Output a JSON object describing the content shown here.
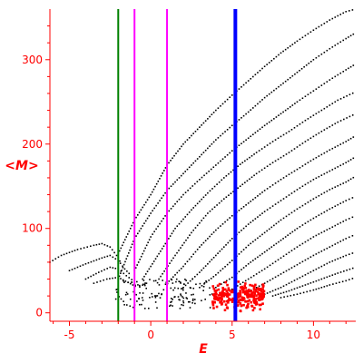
{
  "chart_data": {
    "type": "scatter",
    "title": "",
    "xlabel": "E",
    "ylabel": "<M>",
    "xlim": [
      -6.2,
      12.6
    ],
    "ylim": [
      -10,
      360
    ],
    "xticks": [
      -5,
      0,
      5,
      10
    ],
    "yticks": [
      0,
      100,
      200,
      300
    ],
    "grid": false,
    "colors": {
      "axis": "#ff0000",
      "curves": "#000000",
      "cluster": "#ff0000",
      "green_line": "#008000",
      "magenta_line": "#ff00ff",
      "blue_line": "#0000ff"
    },
    "vertical_lines": [
      {
        "x": -2.0,
        "color": "#008000"
      },
      {
        "x": -1.0,
        "color": "#ff00ff"
      },
      {
        "x": 1.0,
        "color": "#ff00ff"
      },
      {
        "x": 5.2,
        "color": "#0000ff",
        "thick": true
      }
    ],
    "curves": [
      {
        "points": [
          [
            -2.0,
            70
          ],
          [
            -1.5,
            90
          ],
          [
            -1.0,
            110
          ],
          [
            0,
            140
          ],
          [
            1,
            175
          ],
          [
            2,
            200
          ],
          [
            3,
            220
          ],
          [
            4,
            240
          ],
          [
            5,
            258
          ],
          [
            6,
            275
          ],
          [
            7,
            292
          ],
          [
            8,
            308
          ],
          [
            9,
            322
          ],
          [
            10,
            335
          ],
          [
            11,
            347
          ],
          [
            12,
            357
          ],
          [
            12.6,
            360
          ]
        ]
      },
      {
        "points": [
          [
            -2.0,
            40
          ],
          [
            -1.0,
            88
          ],
          [
            0,
            118
          ],
          [
            1,
            145
          ],
          [
            2,
            165
          ],
          [
            3,
            185
          ],
          [
            4,
            205
          ],
          [
            5,
            222
          ],
          [
            6,
            238
          ],
          [
            7,
            255
          ],
          [
            8,
            270
          ],
          [
            9,
            285
          ],
          [
            10,
            300
          ],
          [
            11,
            313
          ],
          [
            12,
            325
          ],
          [
            12.6,
            332
          ]
        ]
      },
      {
        "points": [
          [
            -1.0,
            50
          ],
          [
            0,
            90
          ],
          [
            1,
            118
          ],
          [
            2,
            140
          ],
          [
            3,
            158
          ],
          [
            4,
            175
          ],
          [
            5,
            192
          ],
          [
            6,
            207
          ],
          [
            7,
            222
          ],
          [
            8,
            236
          ],
          [
            9,
            250
          ],
          [
            10,
            263
          ],
          [
            11,
            276
          ],
          [
            12,
            288
          ],
          [
            12.6,
            295
          ]
        ]
      },
      {
        "points": [
          [
            -0.5,
            40
          ],
          [
            0.5,
            70
          ],
          [
            1.5,
            100
          ],
          [
            2.5,
            122
          ],
          [
            3.5,
            142
          ],
          [
            4.5,
            160
          ],
          [
            5.5,
            176
          ],
          [
            6.5,
            190
          ],
          [
            7.5,
            203
          ],
          [
            8.5,
            215
          ],
          [
            9.5,
            228
          ],
          [
            10.5,
            240
          ],
          [
            11.5,
            252
          ],
          [
            12.6,
            262
          ]
        ]
      },
      {
        "points": [
          [
            0.5,
            40
          ],
          [
            1.5,
            68
          ],
          [
            2.5,
            95
          ],
          [
            3.5,
            118
          ],
          [
            4.5,
            135
          ],
          [
            5.5,
            150
          ],
          [
            6.5,
            165
          ],
          [
            7.5,
            178
          ],
          [
            8.5,
            190
          ],
          [
            9.5,
            203
          ],
          [
            10.5,
            215
          ],
          [
            11.5,
            226
          ],
          [
            12.6,
            236
          ]
        ]
      },
      {
        "points": [
          [
            1.0,
            35
          ],
          [
            2.0,
            55
          ],
          [
            3.0,
            78
          ],
          [
            4.0,
            98
          ],
          [
            5.0,
            115
          ],
          [
            6.0,
            130
          ],
          [
            7.0,
            145
          ],
          [
            8.0,
            158
          ],
          [
            9.0,
            170
          ],
          [
            10.0,
            182
          ],
          [
            11.0,
            193
          ],
          [
            12.0,
            203
          ],
          [
            12.6,
            210
          ]
        ]
      },
      {
        "points": [
          [
            2.0,
            30
          ],
          [
            3.0,
            48
          ],
          [
            4.0,
            68
          ],
          [
            5.0,
            88
          ],
          [
            6.0,
            105
          ],
          [
            7.0,
            120
          ],
          [
            8.0,
            133
          ],
          [
            9.0,
            146
          ],
          [
            10.0,
            158
          ],
          [
            11.0,
            168
          ],
          [
            12.0,
            178
          ],
          [
            12.6,
            185
          ]
        ]
      },
      {
        "points": [
          [
            3.0,
            30
          ],
          [
            4.0,
            45
          ],
          [
            5.0,
            62
          ],
          [
            6.0,
            80
          ],
          [
            7.0,
            95
          ],
          [
            8.0,
            110
          ],
          [
            9.0,
            123
          ],
          [
            10.0,
            135
          ],
          [
            11.0,
            146
          ],
          [
            12.0,
            155
          ],
          [
            12.6,
            162
          ]
        ]
      },
      {
        "points": [
          [
            4.0,
            30
          ],
          [
            5.0,
            42
          ],
          [
            6.0,
            58
          ],
          [
            7.0,
            72
          ],
          [
            8.0,
            86
          ],
          [
            9.0,
            100
          ],
          [
            10.0,
            112
          ],
          [
            11.0,
            123
          ],
          [
            12.0,
            133
          ],
          [
            12.6,
            138
          ]
        ]
      },
      {
        "points": [
          [
            5.0,
            28
          ],
          [
            6.0,
            40
          ],
          [
            7.0,
            52
          ],
          [
            8.0,
            65
          ],
          [
            9.0,
            78
          ],
          [
            10.0,
            90
          ],
          [
            11.0,
            100
          ],
          [
            12.0,
            110
          ],
          [
            12.6,
            115
          ]
        ]
      },
      {
        "points": [
          [
            6.0,
            25
          ],
          [
            7.0,
            35
          ],
          [
            8.0,
            46
          ],
          [
            9.0,
            57
          ],
          [
            10.0,
            68
          ],
          [
            11.0,
            78
          ],
          [
            12.0,
            88
          ],
          [
            12.6,
            93
          ]
        ]
      },
      {
        "points": [
          [
            7.0,
            22
          ],
          [
            8.0,
            30
          ],
          [
            9.0,
            40
          ],
          [
            10.0,
            50
          ],
          [
            11.0,
            60
          ],
          [
            12.0,
            68
          ],
          [
            12.6,
            72
          ]
        ]
      },
      {
        "points": [
          [
            7.5,
            20
          ],
          [
            8.5,
            26
          ],
          [
            9.5,
            33
          ],
          [
            10.5,
            40
          ],
          [
            11.5,
            47
          ],
          [
            12.6,
            54
          ]
        ]
      },
      {
        "points": [
          [
            8.0,
            18
          ],
          [
            9.0,
            22
          ],
          [
            10.0,
            27
          ],
          [
            11.0,
            33
          ],
          [
            12.0,
            38
          ],
          [
            12.6,
            42
          ]
        ]
      },
      {
        "points": [
          [
            -6.2,
            60
          ],
          [
            -5.5,
            68
          ],
          [
            -4.5,
            75
          ],
          [
            -3.5,
            80
          ],
          [
            -3.0,
            82
          ],
          [
            -2.5,
            78
          ],
          [
            -2.1,
            68
          ],
          [
            -1.8,
            58
          ]
        ]
      },
      {
        "points": [
          [
            -5.0,
            50
          ],
          [
            -4.0,
            58
          ],
          [
            -3.0,
            65
          ],
          [
            -2.5,
            68
          ],
          [
            -2.0,
            62
          ],
          [
            -1.6,
            52
          ],
          [
            -1.2,
            44
          ]
        ]
      },
      {
        "points": [
          [
            -4.0,
            40
          ],
          [
            -3.2,
            48
          ],
          [
            -2.5,
            54
          ],
          [
            -2.0,
            52
          ],
          [
            -1.5,
            44
          ],
          [
            -1.0,
            37
          ]
        ]
      },
      {
        "points": [
          [
            -3.5,
            35
          ],
          [
            -2.7,
            40
          ],
          [
            -2.0,
            42
          ],
          [
            -1.4,
            36
          ],
          [
            -0.8,
            30
          ]
        ]
      }
    ],
    "bottom_scatter": {
      "x_range": [
        -2.2,
        3.8
      ],
      "y_range": [
        5,
        40
      ]
    },
    "cluster": {
      "x_range": [
        3.8,
        7.0
      ],
      "y_center": 20,
      "y_spread": 14
    }
  }
}
